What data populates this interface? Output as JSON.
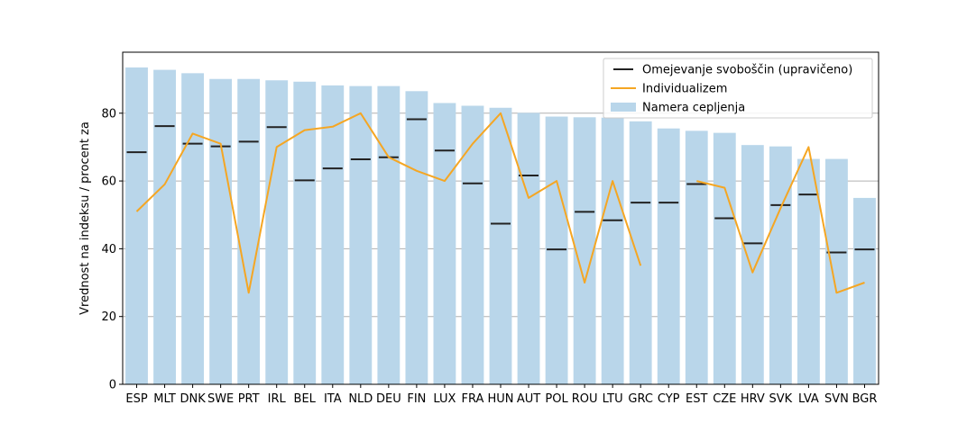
{
  "chart_data": {
    "type": "bar",
    "categories": [
      "ESP",
      "MLT",
      "DNK",
      "SWE",
      "PRT",
      "IRL",
      "BEL",
      "ITA",
      "NLD",
      "DEU",
      "FIN",
      "LUX",
      "FRA",
      "HUN",
      "AUT",
      "POL",
      "ROU",
      "LTU",
      "GRC",
      "CYP",
      "EST",
      "CZE",
      "HRV",
      "SVK",
      "LVA",
      "SVN",
      "BGR"
    ],
    "series": [
      {
        "name": "Namera cepljenja",
        "kind": "bar",
        "color": "#b9d6ea",
        "values": [
          93.5,
          92.8,
          91.8,
          90.1,
          90.1,
          89.7,
          89.3,
          88.2,
          88.0,
          88.0,
          86.5,
          83.0,
          82.2,
          81.6,
          80.1,
          79.0,
          78.8,
          78.7,
          77.6,
          75.5,
          74.8,
          74.2,
          70.6,
          70.2,
          66.5,
          66.5,
          55.0
        ]
      },
      {
        "name": "Omejevanje svoboščin (upravičeno)",
        "kind": "marker",
        "color": "#222222",
        "values": [
          68.5,
          76.2,
          71.0,
          70.2,
          71.6,
          75.9,
          60.2,
          63.7,
          66.4,
          67.0,
          78.2,
          69.0,
          59.3,
          47.4,
          61.6,
          39.8,
          50.9,
          48.4,
          53.6,
          53.6,
          59.1,
          49.0,
          41.6,
          52.9,
          56.0,
          38.9,
          39.8
        ]
      },
      {
        "name": "Individualizem",
        "kind": "line",
        "color": "#f5a623",
        "values": [
          51,
          59,
          74,
          71,
          27,
          70,
          75,
          76,
          80,
          67,
          63,
          60,
          71,
          80,
          55,
          60,
          30,
          60,
          35,
          null,
          60,
          58,
          33,
          52,
          70,
          27,
          30
        ]
      }
    ],
    "xlabel": "",
    "ylabel": "Vrednost na indeksu / procent za",
    "ylim": [
      0,
      98
    ],
    "yticks": [
      0,
      20,
      40,
      60,
      80
    ],
    "grid": "horizontal",
    "legend_position": "top-right",
    "legend_order": [
      "Omejevanje svoboščin (upravičeno)",
      "Individualizem",
      "Namera cepljenja"
    ]
  }
}
